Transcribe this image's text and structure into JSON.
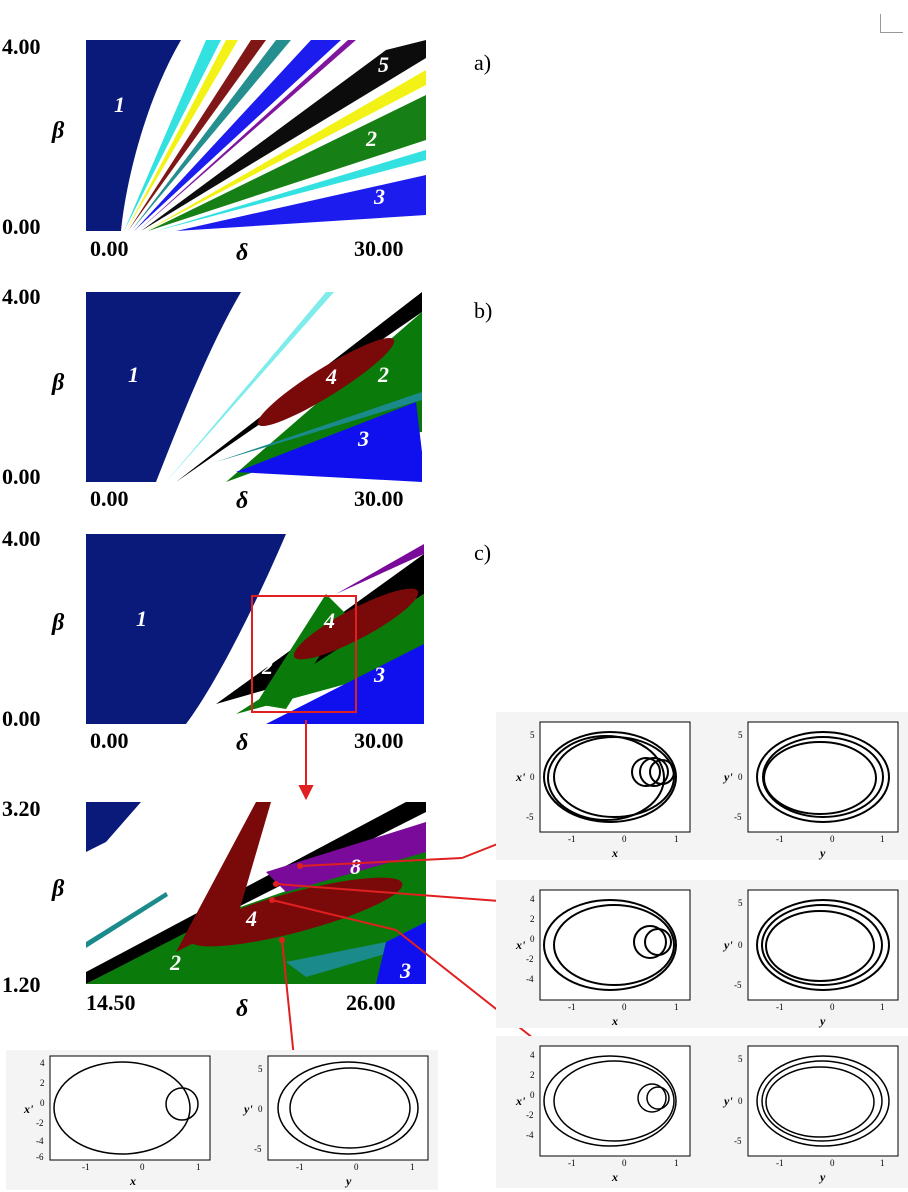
{
  "panels": [
    {
      "id": "a",
      "label": "a)",
      "y_top": "4.00",
      "y_bottom": "0.00",
      "y_symbol": "β",
      "x_left": "0.00",
      "x_right": "30.00",
      "x_symbol": "δ",
      "regions": [
        "1",
        "5",
        "2",
        "3"
      ]
    },
    {
      "id": "b",
      "label": "b)",
      "y_top": "4.00",
      "y_bottom": "0.00",
      "y_symbol": "β",
      "x_left": "0.00",
      "x_right": "30.00",
      "x_symbol": "δ",
      "regions": [
        "1",
        "4",
        "2",
        "3"
      ]
    },
    {
      "id": "c",
      "label": "c)",
      "y_top": "4.00",
      "y_bottom": "0.00",
      "y_symbol": "β",
      "x_left": "0.00",
      "x_right": "30.00",
      "x_symbol": "δ",
      "regions": [
        "1",
        "4",
        "2",
        "3"
      ]
    },
    {
      "id": "zoom",
      "y_top": "3.20",
      "y_bottom": "1.20",
      "y_symbol": "β",
      "x_left": "14.50",
      "x_right": "26.00",
      "x_symbol": "δ",
      "regions": [
        "8",
        "4",
        "2",
        "3"
      ]
    }
  ],
  "phase_portraits": {
    "x_ticks": [
      "-1",
      "0",
      "1"
    ],
    "y_ticks_a": [
      "5",
      "0",
      "-5"
    ],
    "y_ticks_b": [
      "4",
      "2",
      "0",
      "-2",
      "-4",
      "-6"
    ],
    "labels": {
      "x": "x",
      "xp": "x'",
      "y": "y",
      "yp": "y'"
    }
  },
  "colors": {
    "navy": "#0a1a7a",
    "blue": "#1010ee",
    "green": "#0a7a0a",
    "maroon": "#7a0a0a",
    "purple": "#7a0a9a",
    "teal": "#1a8a8a",
    "black": "#000000",
    "yellow": "#f2f20a",
    "cyan": "#2ae0e0",
    "arrow": "#e02020"
  }
}
